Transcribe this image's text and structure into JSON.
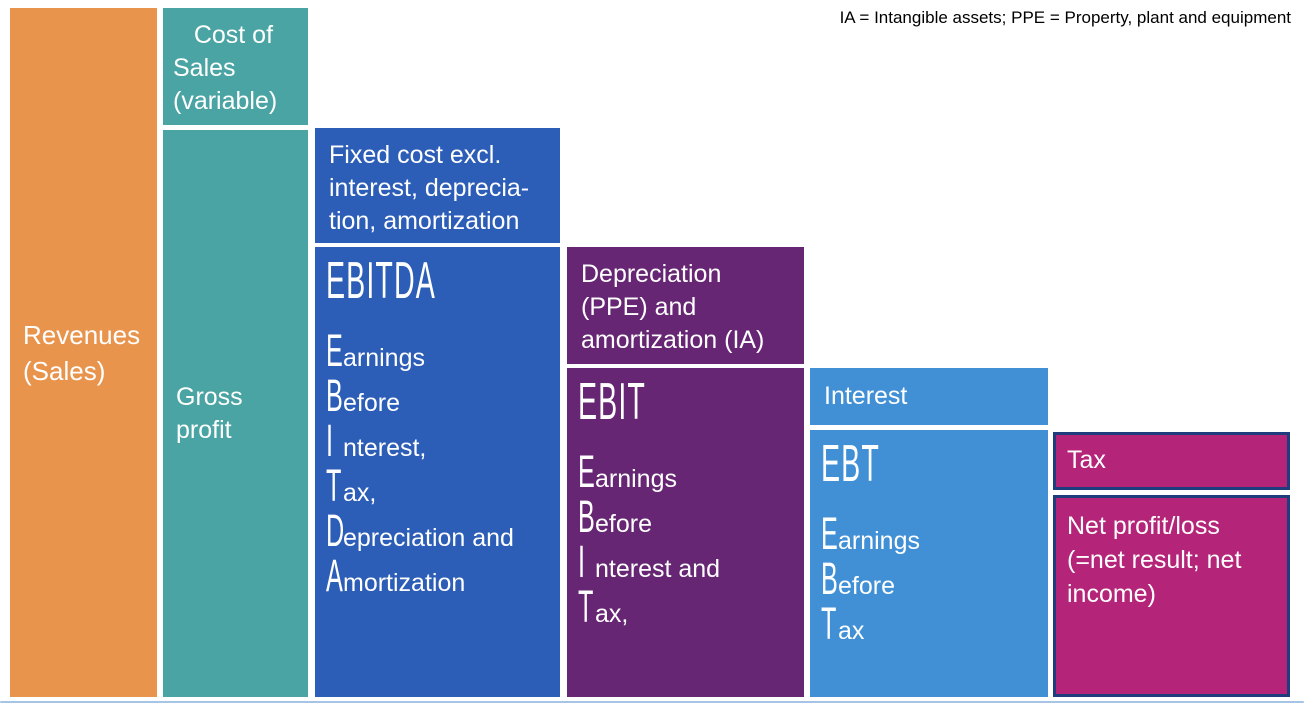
{
  "note": "IA = Intangible assets; PPE = Property, plant and equipment",
  "colors": {
    "revenues_orange": "#e8944d",
    "cost_gross_teal": "#4aa4a3",
    "ebitda_blue": "#2c5db7",
    "ebit_purple": "#662673",
    "ebt_light_blue": "#4190d5",
    "tax_magenta": "#b42479",
    "magenta_border_navy": "#1f3d7d",
    "bottom_rule_light_blue": "#a6c4e6",
    "text_white": "#ffffff",
    "note_black": "#000000"
  },
  "boxes": {
    "revenues": {
      "label": "Revenues\n(Sales)"
    },
    "cost_of_sales": {
      "label": "   Cost of\nSales\n(variable)"
    },
    "gross_profit": {
      "label": "Gross\nprofit"
    },
    "fixed_cost": {
      "label": "Fixed cost excl.\ninterest, deprecia-\ntion, amortization"
    },
    "ebitda": {
      "title": "EBITDA",
      "lines": [
        {
          "initial": "E",
          "rest": "arnings"
        },
        {
          "initial": "B",
          "rest": "efore"
        },
        {
          "initial": "I",
          "rest": "nterest,"
        },
        {
          "initial": "T",
          "rest": "ax,"
        },
        {
          "initial": "D",
          "rest": "epreciation and"
        },
        {
          "initial": "A",
          "rest": "mortization"
        }
      ]
    },
    "depreciation": {
      "label": "Depreciation\n(PPE) and\namortization (IA)"
    },
    "ebit": {
      "title": "EBIT",
      "lines": [
        {
          "initial": "E",
          "rest": "arnings"
        },
        {
          "initial": "B",
          "rest": "efore"
        },
        {
          "initial": "I",
          "rest": "nterest and"
        },
        {
          "initial": "T",
          "rest": "ax,"
        }
      ]
    },
    "interest": {
      "label": "Interest"
    },
    "ebt": {
      "title": "EBT",
      "lines": [
        {
          "initial": "E",
          "rest": "arnings"
        },
        {
          "initial": "B",
          "rest": "efore"
        },
        {
          "initial": "T",
          "rest": "ax"
        }
      ]
    },
    "tax": {
      "label": "Tax"
    },
    "net_profit": {
      "label": "Net profit/loss\n(=net result; net\nincome)"
    }
  }
}
